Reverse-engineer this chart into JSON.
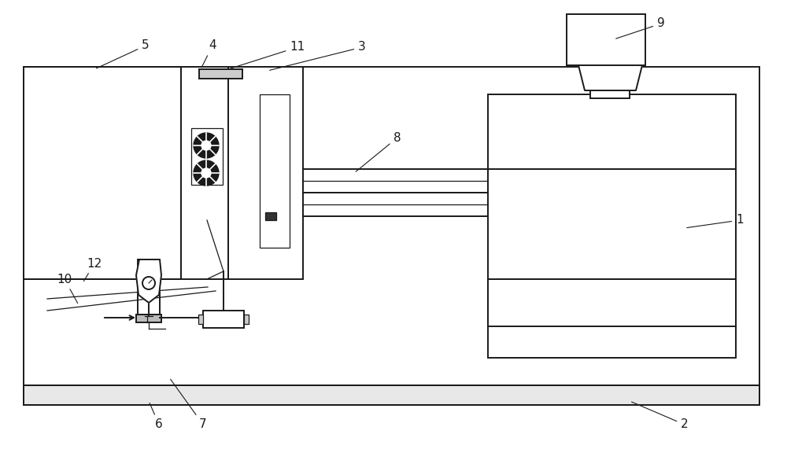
{
  "background_color": "#ffffff",
  "line_color": "#1a1a1a",
  "lw": 1.4,
  "tlw": 0.9,
  "label_fs": 11
}
